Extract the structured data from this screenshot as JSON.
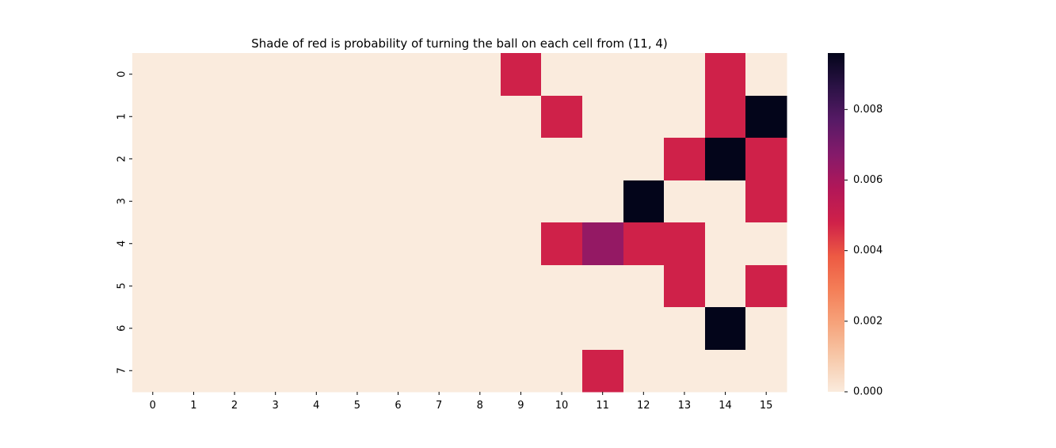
{
  "chart_data": {
    "type": "heatmap",
    "title": "Shade of red is probability of turning the ball on each cell from (11, 4)",
    "xlabel": "",
    "ylabel": "",
    "x_categories": [
      "0",
      "1",
      "2",
      "3",
      "4",
      "5",
      "6",
      "7",
      "8",
      "9",
      "10",
      "11",
      "12",
      "13",
      "14",
      "15"
    ],
    "y_categories": [
      "0",
      "1",
      "2",
      "3",
      "4",
      "5",
      "6",
      "7"
    ],
    "values": [
      [
        0,
        0,
        0,
        0,
        0,
        0,
        0,
        0,
        0,
        0.0048,
        0,
        0,
        0,
        0,
        0.0048,
        0
      ],
      [
        0,
        0,
        0,
        0,
        0,
        0,
        0,
        0,
        0,
        0,
        0.0048,
        0,
        0,
        0,
        0.0048,
        0.0096
      ],
      [
        0,
        0,
        0,
        0,
        0,
        0,
        0,
        0,
        0,
        0,
        0,
        0,
        0,
        0.0048,
        0.0096,
        0.0048
      ],
      [
        0,
        0,
        0,
        0,
        0,
        0,
        0,
        0,
        0,
        0,
        0,
        0,
        0.0096,
        0,
        0,
        0.0048
      ],
      [
        0,
        0,
        0,
        0,
        0,
        0,
        0,
        0,
        0,
        0,
        0.0048,
        0.0064,
        0.0048,
        0.0048,
        0,
        0
      ],
      [
        0,
        0,
        0,
        0,
        0,
        0,
        0,
        0,
        0,
        0,
        0,
        0,
        0,
        0.0048,
        0,
        0.0048
      ],
      [
        0,
        0,
        0,
        0,
        0,
        0,
        0,
        0,
        0,
        0,
        0,
        0,
        0,
        0,
        0.0096,
        0
      ],
      [
        0,
        0,
        0,
        0,
        0,
        0,
        0,
        0,
        0,
        0,
        0,
        0.0048,
        0,
        0,
        0,
        0
      ]
    ],
    "colorbar": {
      "min": 0,
      "max": 0.0096,
      "ticks": [
        0,
        0.002,
        0.004,
        0.006,
        0.008
      ],
      "tick_labels": [
        "0.000",
        "0.002",
        "0.004",
        "0.006",
        "0.008"
      ],
      "colormap": "rocket_r"
    },
    "grid": false,
    "legend": "none"
  }
}
